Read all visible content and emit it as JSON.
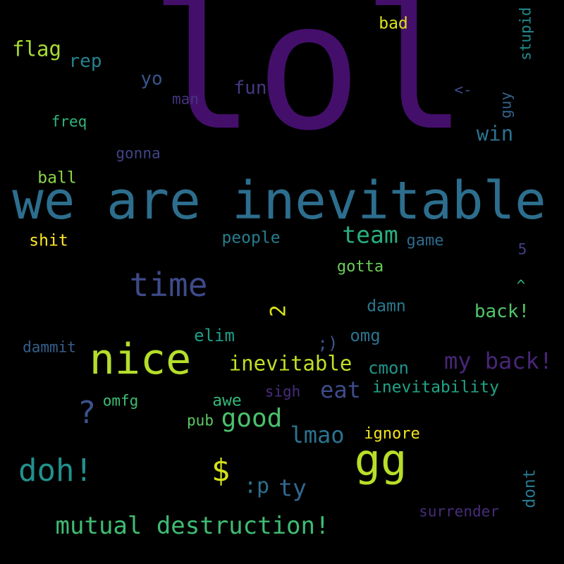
{
  "background_color": "#000000",
  "words": [
    {
      "text": "lol",
      "color": "#440f6b"
    },
    {
      "text": "we are inevitable",
      "color": "#2d6e8e"
    },
    {
      "text": "nice",
      "color": "#b5de2b"
    },
    {
      "text": "gg",
      "color": "#b8de29"
    },
    {
      "text": "time",
      "color": "#3e4a89"
    },
    {
      "text": "doh!",
      "color": "#21918c"
    },
    {
      "text": "$",
      "color": "#d4e21a"
    },
    {
      "text": "?",
      "color": "#3b528b"
    },
    {
      "text": "mutual destruction!",
      "color": "#3fbc73"
    },
    {
      "text": "my back!",
      "color": "#482677"
    },
    {
      "text": "good",
      "color": "#4ac16d"
    },
    {
      "text": "inevitable",
      "color": "#c2df23"
    },
    {
      "text": "team",
      "color": "#29af7f"
    },
    {
      "text": "eat",
      "color": "#3e4c8a"
    },
    {
      "text": "lmao",
      "color": "#2c728e"
    },
    {
      "text": "flag",
      "color": "#a8db34"
    },
    {
      "text": "ty",
      "color": "#31688e"
    },
    {
      "text": ":p",
      "color": "#2d708e"
    },
    {
      "text": "win",
      "color": "#2c728e"
    },
    {
      "text": "back!",
      "color": "#52c569"
    },
    {
      "text": "2",
      "color": "#d8e219"
    },
    {
      "text": "inevitability",
      "color": "#20a386"
    },
    {
      "text": "rep",
      "color": "#26828e"
    },
    {
      "text": "elim",
      "color": "#1f9e89"
    },
    {
      "text": "omg",
      "color": "#2c728e"
    },
    {
      "text": "cmon",
      "color": "#1f948c"
    },
    {
      "text": "fun",
      "color": "#443983"
    },
    {
      "text": "yo",
      "color": "#3a548c"
    },
    {
      "text": "people",
      "color": "#287d8e"
    },
    {
      "text": "gotta",
      "color": "#6ccd5a"
    },
    {
      "text": "damn",
      "color": "#2a788e"
    },
    {
      "text": "game",
      "color": "#306a8e"
    },
    {
      "text": "shit",
      "color": "#fde725"
    },
    {
      "text": "ball",
      "color": "#8bd646"
    },
    {
      "text": "awe",
      "color": "#35b779"
    },
    {
      "text": "ignore",
      "color": "#f2e51d"
    },
    {
      "text": "bad",
      "color": "#dde318"
    },
    {
      "text": "man",
      "color": "#46337e"
    },
    {
      "text": "gonna",
      "color": "#414487"
    },
    {
      "text": "freq",
      "color": "#2fb47c"
    },
    {
      "text": "dammit",
      "color": "#355f8d"
    },
    {
      "text": ";)",
      "color": "#39568c"
    },
    {
      "text": "omfg",
      "color": "#3dbc74"
    },
    {
      "text": "sigh",
      "color": "#472d7b"
    },
    {
      "text": "pub",
      "color": "#5ec962"
    },
    {
      "text": "surrender",
      "color": "#472c7a"
    },
    {
      "text": "dont",
      "color": "#2a788e"
    },
    {
      "text": "stupid",
      "color": "#238a8d"
    },
    {
      "text": "guy",
      "color": "#33638d"
    },
    {
      "text": "5",
      "color": "#433e85"
    },
    {
      "text": "^",
      "color": "#2fb47c"
    },
    {
      "text": "<-",
      "color": "#3e4c8a"
    }
  ]
}
